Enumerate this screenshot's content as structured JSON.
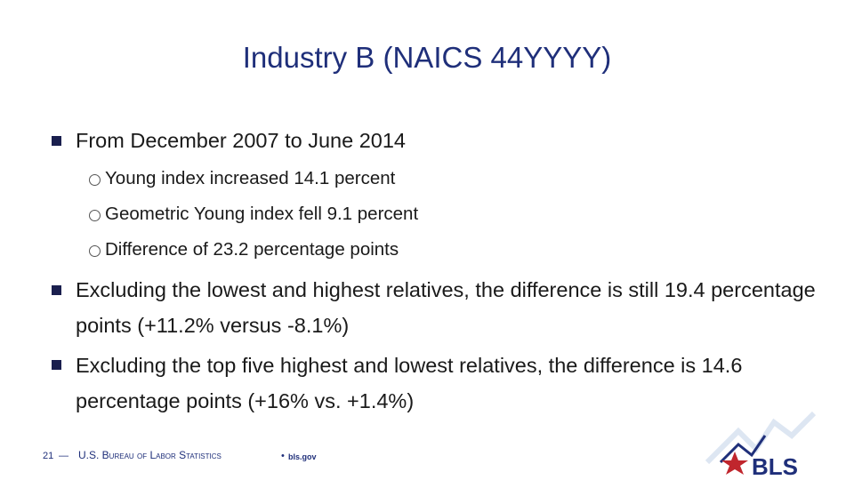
{
  "title": "Industry B (NAICS 44YYYY)",
  "bullets": [
    {
      "text": "From December 2007 to June 2014",
      "sub": [
        "Young index increased 14.1 percent",
        "Geometric Young index fell 9.1 percent",
        "Difference of 23.2 percentage points"
      ]
    },
    {
      "text": "Excluding the lowest and highest relatives, the difference is still 19.4 percentage points (+11.2% versus -8.1%)"
    },
    {
      "text": "Excluding the top five highest and lowest relatives, the difference is 14.6 percentage points (+16% vs. +1.4%)"
    }
  ],
  "footer": {
    "page": "21",
    "separator": "—",
    "org": "U.S. Bureau of Labor Statistics",
    "dot": "•",
    "site": "bls.gov"
  },
  "logo": "BLS"
}
